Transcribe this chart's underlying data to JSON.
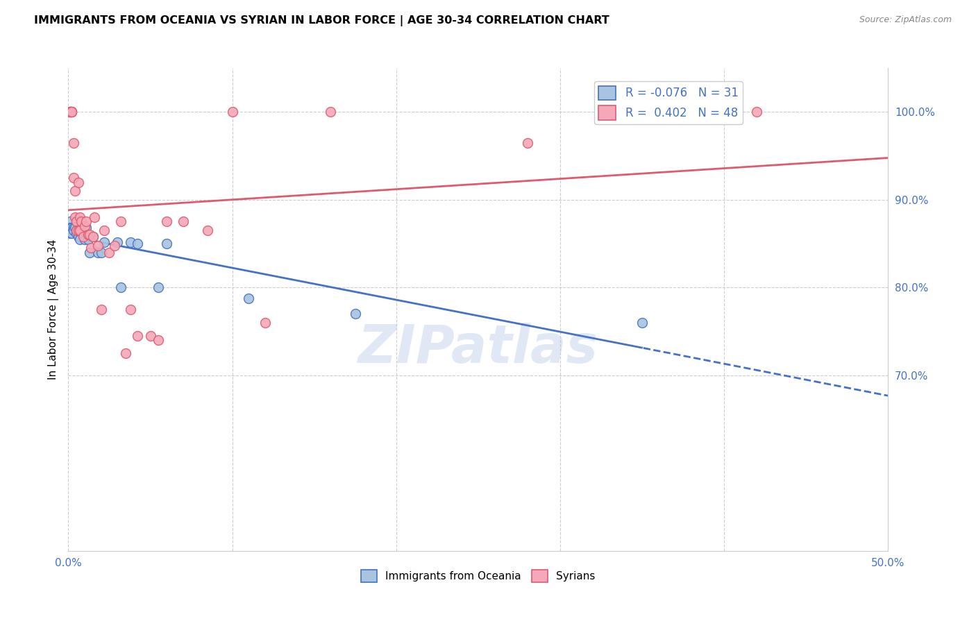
{
  "title": "IMMIGRANTS FROM OCEANIA VS SYRIAN IN LABOR FORCE | AGE 30-34 CORRELATION CHART",
  "source": "Source: ZipAtlas.com",
  "ylabel": "In Labor Force | Age 30-34",
  "xlim": [
    0.0,
    0.5
  ],
  "ylim": [
    0.5,
    1.05
  ],
  "xtick_positions": [
    0.0,
    0.1,
    0.2,
    0.3,
    0.4,
    0.5
  ],
  "xticklabels": [
    "0.0%",
    "",
    "",
    "",
    "",
    "50.0%"
  ],
  "ytick_positions": [
    0.7,
    0.8,
    0.9,
    1.0
  ],
  "ytick_labels": [
    "70.0%",
    "80.0%",
    "90.0%",
    "100.0%"
  ],
  "legend_R_blue": "-0.076",
  "legend_N_blue": "31",
  "legend_R_pink": "0.402",
  "legend_N_pink": "48",
  "blue_color": "#a8c4e0",
  "pink_color": "#f4a8b8",
  "blue_line_color": "#4472c4",
  "pink_line_color": "#e05a6e",
  "watermark": "ZIPatlas",
  "blue_x": [
    0.001,
    0.001,
    0.001,
    0.002,
    0.002,
    0.003,
    0.003,
    0.004,
    0.005,
    0.005,
    0.006,
    0.007,
    0.008,
    0.009,
    0.01,
    0.011,
    0.012,
    0.013,
    0.015,
    0.018,
    0.02,
    0.022,
    0.03,
    0.032,
    0.038,
    0.042,
    0.055,
    0.06,
    0.11,
    0.175,
    0.35
  ],
  "blue_y": [
    0.875,
    0.868,
    0.862,
    0.868,
    0.862,
    0.868,
    0.865,
    0.868,
    0.865,
    0.862,
    0.858,
    0.855,
    0.868,
    0.86,
    0.855,
    0.868,
    0.855,
    0.84,
    0.858,
    0.84,
    0.84,
    0.852,
    0.852,
    0.8,
    0.852,
    0.85,
    0.8,
    0.85,
    0.788,
    0.77,
    0.76
  ],
  "pink_x": [
    0.001,
    0.001,
    0.001,
    0.001,
    0.001,
    0.002,
    0.002,
    0.002,
    0.002,
    0.002,
    0.003,
    0.003,
    0.004,
    0.004,
    0.005,
    0.005,
    0.006,
    0.006,
    0.007,
    0.007,
    0.008,
    0.009,
    0.01,
    0.011,
    0.012,
    0.013,
    0.014,
    0.015,
    0.016,
    0.018,
    0.02,
    0.022,
    0.025,
    0.028,
    0.032,
    0.035,
    0.038,
    0.042,
    0.05,
    0.055,
    0.06,
    0.07,
    0.085,
    0.1,
    0.12,
    0.16,
    0.28,
    0.42
  ],
  "pink_y": [
    1.0,
    1.0,
    1.0,
    1.0,
    1.0,
    1.0,
    1.0,
    1.0,
    1.0,
    1.0,
    0.965,
    0.925,
    0.91,
    0.88,
    0.875,
    0.865,
    0.92,
    0.865,
    0.88,
    0.865,
    0.875,
    0.858,
    0.87,
    0.875,
    0.86,
    0.86,
    0.845,
    0.858,
    0.88,
    0.848,
    0.775,
    0.865,
    0.84,
    0.848,
    0.875,
    0.725,
    0.775,
    0.745,
    0.745,
    0.74,
    0.875,
    0.875,
    0.865,
    1.0,
    0.76,
    1.0,
    0.965,
    1.0
  ]
}
